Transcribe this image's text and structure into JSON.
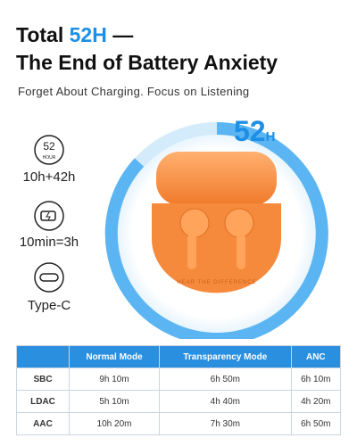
{
  "headline": {
    "lead": "Total",
    "highlight": "52H",
    "dash": "—",
    "line2": "The End of Battery Anxiety"
  },
  "subtitle": "Forget About Charging. Focus on Listening",
  "badge": {
    "number": "52",
    "unit": "H"
  },
  "features": [
    {
      "icon_number": "52",
      "icon_unit": "HOUR",
      "label": "10h+42h"
    },
    {
      "label": "10min=3h"
    },
    {
      "label": "Type-C"
    }
  ],
  "case_text": "HEAR THE DIFFERENCE",
  "table": {
    "header": [
      "Normal Mode",
      "Transparency Mode",
      "ANC"
    ],
    "rows": [
      [
        "SBC",
        "9h 10m",
        "6h 50m",
        "6h 10m"
      ],
      [
        "LDAC",
        "5h 10m",
        "4h 40m",
        "4h 20m"
      ],
      [
        "AAC",
        "10h 20m",
        "7h 30m",
        "6h 50m"
      ]
    ]
  }
}
